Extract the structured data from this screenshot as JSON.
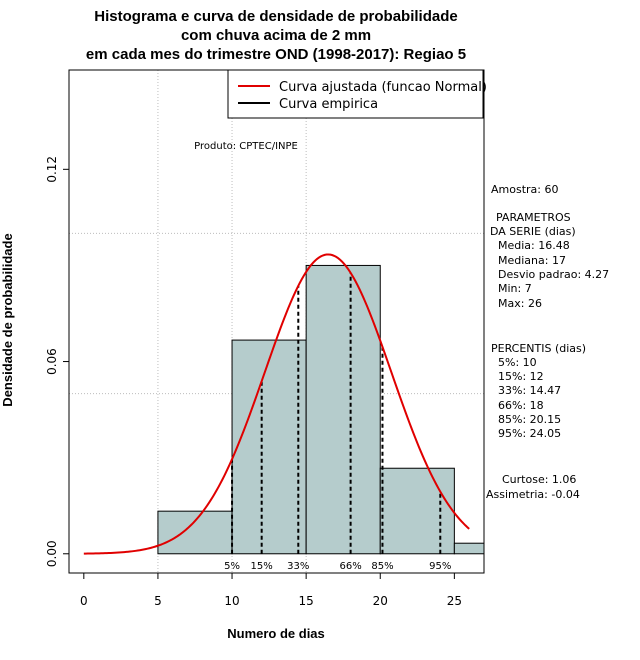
{
  "chart_data": {
    "type": "bar",
    "title_lines": [
      "Histograma e curva de densidade de probabilidade",
      "com chuva acima de 2 mm",
      "em cada mes do trimestre OND (1998-2017): Regiao 5"
    ],
    "xlabel": "Numero de dias",
    "ylabel": "Densidade de probabilidade",
    "xlim": [
      -1,
      27
    ],
    "ylim": [
      -0.006,
      0.151
    ],
    "x_ticks": [
      0,
      5,
      10,
      15,
      20,
      25
    ],
    "x_tick_labels": [
      "0",
      "5",
      "10",
      "15",
      "20",
      "25"
    ],
    "y_ticks": [
      0.0,
      0.06,
      0.12
    ],
    "y_tick_labels": [
      "0.00",
      "0.06",
      "0.12"
    ],
    "grid": true,
    "grid_x": [
      5,
      10,
      15
    ],
    "grid_y": [
      0.1,
      0.05
    ],
    "bins": [
      {
        "x0": 5,
        "x1": 10,
        "density": 0.0133
      },
      {
        "x0": 10,
        "x1": 15,
        "density": 0.0667
      },
      {
        "x0": 15,
        "x1": 20,
        "density": 0.09
      },
      {
        "x0": 20,
        "x1": 25,
        "density": 0.0267
      },
      {
        "x0": 25,
        "x1": 27,
        "density": 0.0033
      }
    ],
    "bar_color": "#b5cccc",
    "normal_fit": {
      "mean": 16.48,
      "sd": 4.27,
      "x_from": 0,
      "x_to": 26,
      "color": "#e00000"
    },
    "percentile_lines": [
      {
        "label": "5%",
        "value": 10
      },
      {
        "label": "15%",
        "value": 12
      },
      {
        "label": "33%",
        "value": 14.47
      },
      {
        "label": "66%",
        "value": 18
      },
      {
        "label": "85%",
        "value": 20.15
      },
      {
        "label": "95%",
        "value": 24.05
      }
    ],
    "legend": {
      "placement": "top-right",
      "entries": [
        {
          "label": "Curva ajustada (funcao Normal)",
          "color": "#e00000"
        },
        {
          "label": "Curva empirica",
          "color": "#000000"
        }
      ]
    },
    "annotation": "Produto: CPTEC/INPE",
    "side_panel": {
      "amostra": "Amostra: 60",
      "param_header_1": "PARAMETROS",
      "param_header_2": "DA SERIE (dias)",
      "params": [
        "Media: 16.48",
        "Mediana: 17",
        "Desvio padrao: 4.27",
        "Min: 7",
        "Max: 26"
      ],
      "percentis_header": "PERCENTIS (dias)",
      "percentis": [
        "5%: 10",
        "15%: 12",
        "33%: 14.47",
        "66%: 18",
        "85%: 20.15",
        "95%: 24.05"
      ],
      "curtose": "Curtose: 1.06",
      "assimetria": "Assimetria: -0.04"
    }
  }
}
